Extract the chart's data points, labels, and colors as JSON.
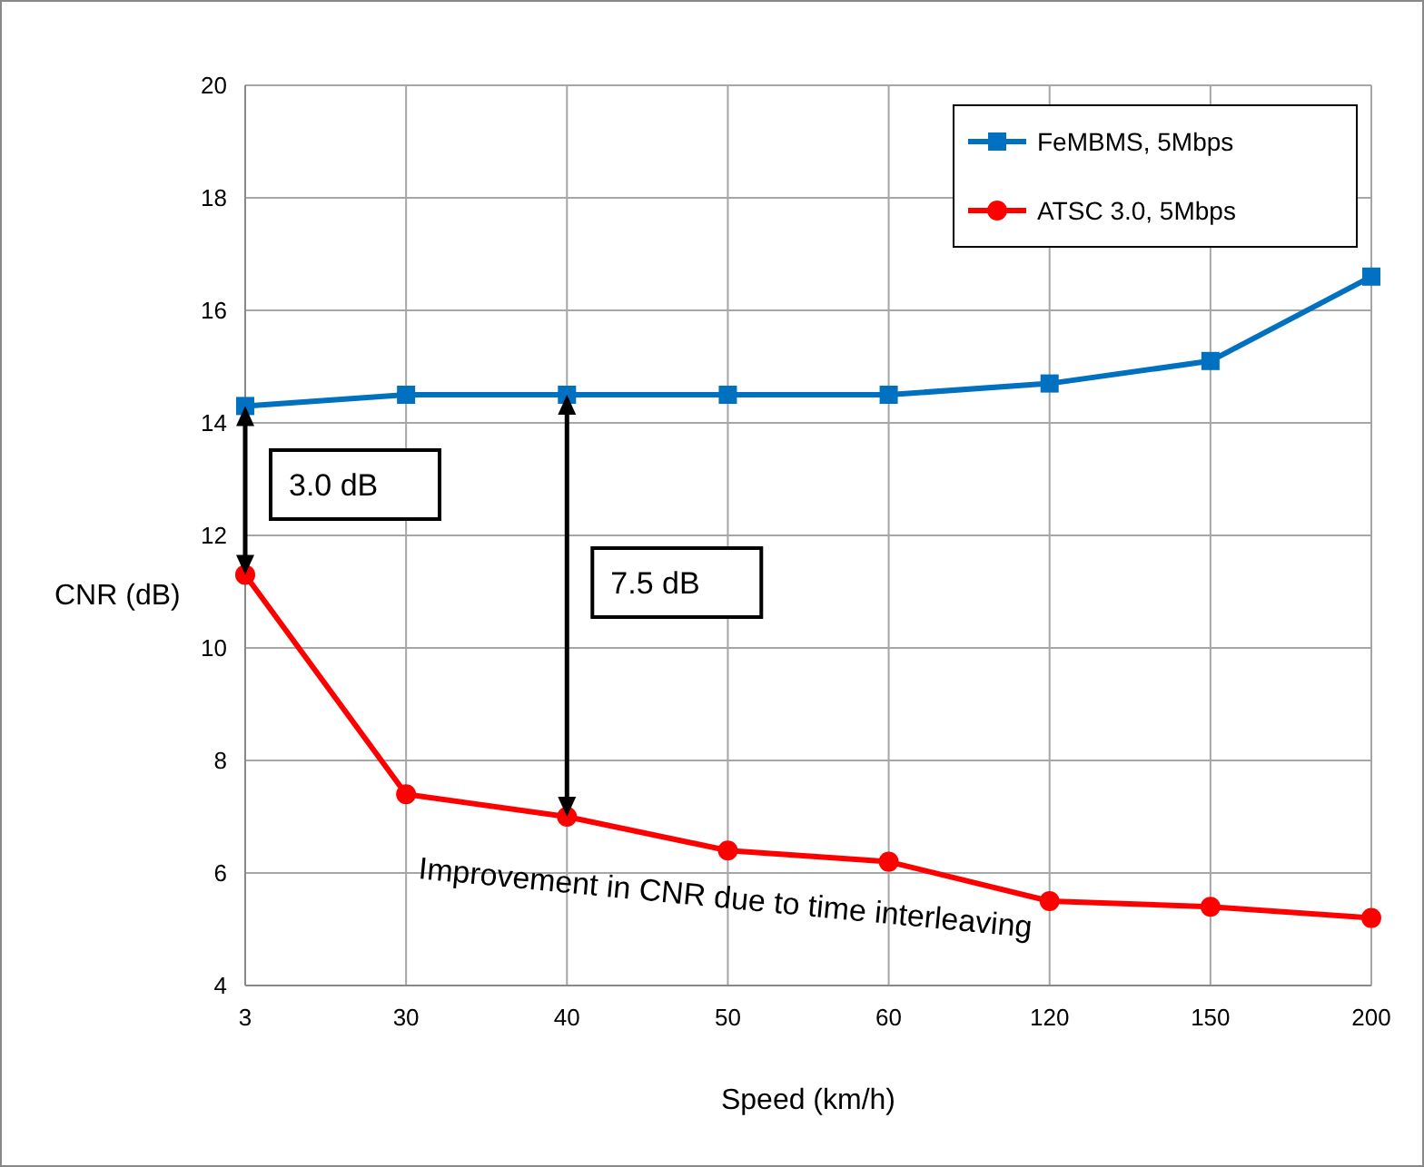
{
  "chart_data": {
    "type": "line",
    "xlabel": "Speed (km/h)",
    "ylabel": "CNR (dB)",
    "categories": [
      "3",
      "30",
      "40",
      "50",
      "60",
      "120",
      "150",
      "200"
    ],
    "series": [
      {
        "name": "FeMBMS, 5Mbps",
        "color": "#0070c0",
        "marker": "square",
        "values": [
          14.3,
          14.5,
          14.5,
          14.5,
          14.5,
          14.7,
          15.1,
          16.6
        ]
      },
      {
        "name": "ATSC 3.0, 5Mbps",
        "color": "#ff0000",
        "marker": "circle",
        "values": [
          11.3,
          7.4,
          7.0,
          6.4,
          6.2,
          5.5,
          5.4,
          5.2
        ]
      }
    ],
    "ylim": [
      4,
      20
    ],
    "yticks": [
      4,
      6,
      8,
      10,
      12,
      14,
      16,
      18,
      20
    ],
    "grid": true,
    "legend": "top right",
    "annotations": [
      "3.0 dB",
      "7.5 dB",
      "Improvement  in CNR due to time interleaving"
    ]
  }
}
